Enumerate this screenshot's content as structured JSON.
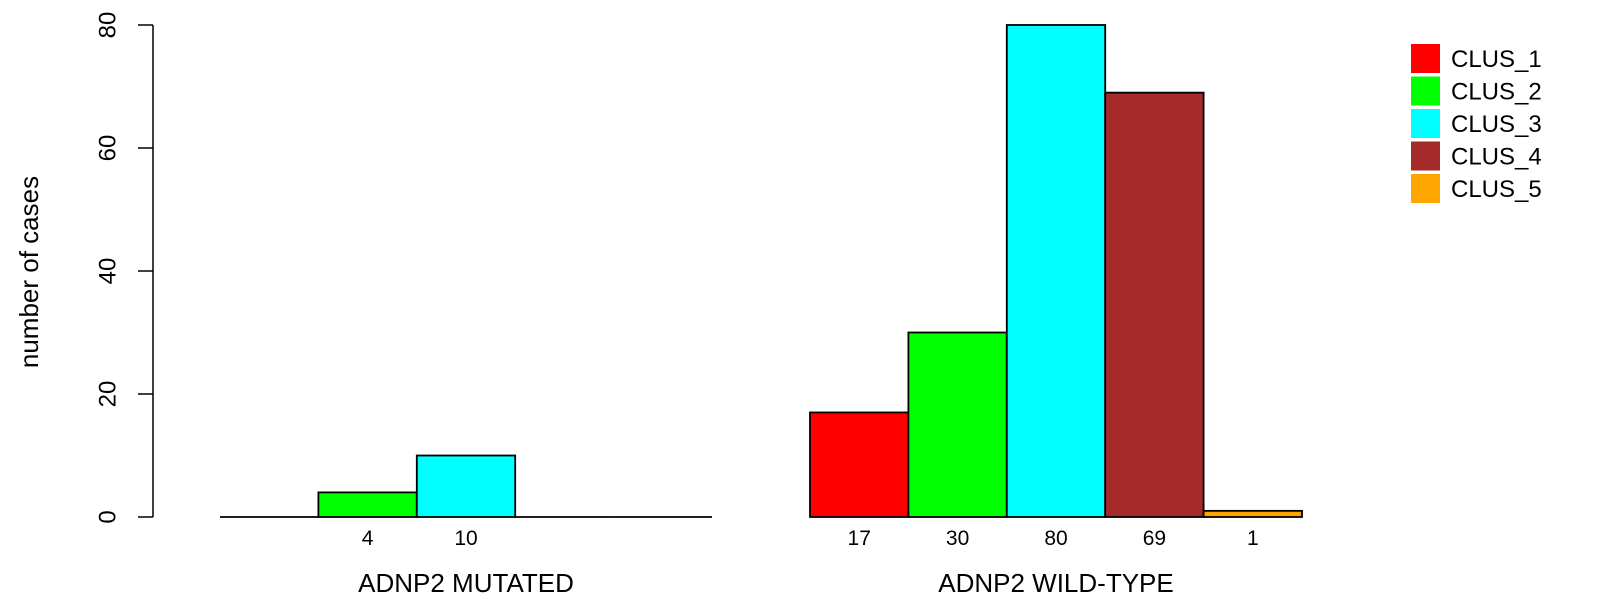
{
  "chart_data": {
    "type": "bar",
    "ylabel": "number of cases",
    "ylim": [
      0,
      80
    ],
    "yticks": [
      "0",
      "20",
      "40",
      "60",
      "80"
    ],
    "grid": false,
    "legend_position": "top-right",
    "series_names": [
      "CLUS_1",
      "CLUS_2",
      "CLUS_3",
      "CLUS_4",
      "CLUS_5"
    ],
    "series_colors": [
      "#ff0000",
      "#00ff00",
      "#00ffff",
      "#a52a2a",
      "#ffa500"
    ],
    "groups": [
      {
        "label": "ADNP2 MUTATED",
        "values": [
          0,
          4,
          10,
          0,
          0
        ],
        "count_labels": [
          "",
          "4",
          "10",
          "",
          ""
        ]
      },
      {
        "label": "ADNP2 WILD-TYPE",
        "values": [
          17,
          30,
          80,
          69,
          1
        ],
        "count_labels": [
          "17",
          "30",
          "80",
          "69",
          "1"
        ]
      }
    ]
  }
}
